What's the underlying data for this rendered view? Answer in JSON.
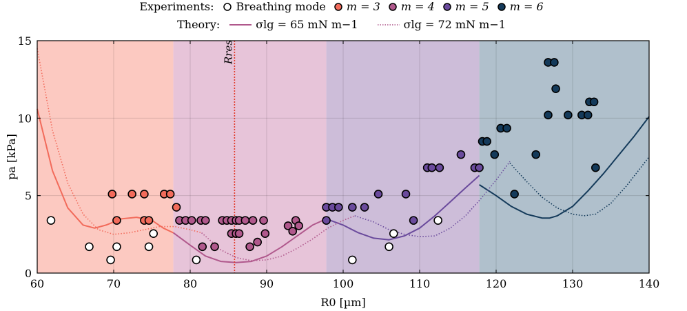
{
  "legend": {
    "experiments_label": "Experiments:",
    "theory_label": "Theory:",
    "experiments": [
      {
        "key": "breathing",
        "text": "Breathing mode",
        "color": "#ffffff"
      },
      {
        "key": "m3",
        "text": "m = 3",
        "color": "#f26b5b"
      },
      {
        "key": "m4",
        "text": "m = 4",
        "color": "#b0588c"
      },
      {
        "key": "m5",
        "text": "m = 5",
        "color": "#6a4a9c"
      },
      {
        "key": "m6",
        "text": "m = 6",
        "color": "#143a5a"
      }
    ],
    "theory": [
      {
        "key": "s65",
        "text": "σlg = 65 mN m−1",
        "style": "solid"
      },
      {
        "key": "s72",
        "text": "σlg = 72 mN m−1",
        "style": "dotted"
      }
    ]
  },
  "chart_data": {
    "type": "scatter",
    "xlabel": "R0 [µm]",
    "ylabel": "pa [kPa]",
    "xlim": [
      60,
      140
    ],
    "ylim": [
      0,
      15
    ],
    "xticks": [
      60,
      70,
      80,
      90,
      100,
      110,
      120,
      130,
      140
    ],
    "yticks": [
      0,
      5,
      10,
      15
    ],
    "grid": true,
    "annotation": {
      "text": "Rres",
      "x": 85.8
    },
    "regions": [
      {
        "mode": "m3",
        "x": [
          60,
          77.8
        ],
        "color": "#fcc9c1"
      },
      {
        "mode": "m4",
        "x": [
          77.8,
          97.8
        ],
        "color": "#e7c4d9"
      },
      {
        "mode": "m5",
        "x": [
          97.8,
          117.8
        ],
        "color": "#cdbdd9"
      },
      {
        "mode": "m6",
        "x": [
          117.8,
          140
        ],
        "color": "#b0c0cc"
      }
    ],
    "theory_solid": [
      {
        "mode": "m3",
        "color": "#f26b5b",
        "x": [
          60,
          62,
          64,
          66,
          67.5,
          69,
          71,
          73,
          75,
          76.5,
          77.8
        ],
        "y": [
          10.6,
          6.6,
          4.2,
          3.1,
          2.9,
          3.1,
          3.5,
          3.6,
          3.4,
          2.9,
          2.6
        ]
      },
      {
        "mode": "m4",
        "color": "#b0588c",
        "x": [
          77.8,
          80,
          82,
          84,
          86,
          88,
          90,
          92,
          94,
          96,
          97.8
        ],
        "y": [
          2.6,
          1.8,
          1.1,
          0.75,
          0.68,
          0.75,
          1.1,
          1.7,
          2.4,
          3.1,
          3.5
        ]
      },
      {
        "mode": "m5",
        "color": "#6a4a9c",
        "x": [
          97.8,
          100,
          102,
          104,
          106,
          108,
          110,
          112,
          114,
          116,
          117.8
        ],
        "y": [
          3.5,
          3.1,
          2.6,
          2.25,
          2.15,
          2.4,
          2.9,
          3.7,
          4.6,
          5.5,
          6.3
        ]
      },
      {
        "mode": "m6",
        "color": "#143a5a",
        "x": [
          117.8,
          120,
          122,
          124,
          126,
          127,
          128,
          130,
          132,
          134,
          136,
          138,
          140
        ],
        "y": [
          5.7,
          5.0,
          4.3,
          3.8,
          3.55,
          3.55,
          3.7,
          4.3,
          5.3,
          6.4,
          7.6,
          8.8,
          10.1
        ]
      }
    ],
    "theory_dotted": [
      {
        "mode": "m3",
        "color": "#f26b5b",
        "x": [
          60,
          62,
          64,
          66,
          68,
          70,
          72,
          74,
          76,
          78,
          80,
          81.5
        ],
        "y": [
          14.5,
          9.2,
          5.8,
          3.8,
          2.8,
          2.5,
          2.6,
          2.8,
          3.0,
          3.0,
          2.8,
          2.6
        ]
      },
      {
        "mode": "m4",
        "color": "#b0588c",
        "x": [
          81.5,
          84,
          86,
          88,
          90,
          92,
          94,
          96,
          98,
          100,
          101.5
        ],
        "y": [
          2.6,
          1.5,
          1.0,
          0.8,
          0.85,
          1.1,
          1.6,
          2.2,
          2.9,
          3.4,
          3.7
        ]
      },
      {
        "mode": "m5",
        "color": "#6a4a9c",
        "x": [
          101.5,
          104,
          106,
          108,
          110,
          112,
          114,
          116,
          118,
          120,
          121.8
        ],
        "y": [
          3.7,
          3.3,
          2.8,
          2.5,
          2.35,
          2.4,
          2.9,
          3.7,
          4.8,
          6.0,
          7.2
        ]
      },
      {
        "mode": "m6",
        "color": "#143a5a",
        "x": [
          121.8,
          124,
          126,
          128,
          130,
          131.5,
          133,
          135,
          137,
          140
        ],
        "y": [
          7.1,
          5.9,
          4.9,
          4.2,
          3.8,
          3.7,
          3.8,
          4.5,
          5.6,
          7.5
        ]
      }
    ],
    "series": [
      {
        "name": "Breathing mode",
        "color": "#ffffff",
        "x": [
          61.8,
          66.8,
          69.6,
          70.4,
          74.6,
          75.2,
          80.8,
          101.2,
          106.0,
          106.6,
          112.4
        ],
        "y": [
          3.4,
          1.7,
          0.85,
          1.7,
          1.7,
          2.55,
          0.85,
          0.85,
          1.7,
          2.55,
          3.4
        ]
      },
      {
        "name": "m = 3",
        "color": "#f26b5b",
        "x": [
          69.8,
          70.4,
          72.4,
          74.0,
          74.0,
          74.6,
          76.6,
          77.4,
          78.2
        ],
        "y": [
          5.1,
          3.4,
          5.1,
          5.1,
          3.4,
          3.4,
          5.1,
          5.1,
          4.25
        ]
      },
      {
        "name": "m = 4",
        "color": "#b0588c",
        "x": [
          78.6,
          79.4,
          80.2,
          81.4,
          81.6,
          82.0,
          83.2,
          84.2,
          84.8,
          85.4,
          85.4,
          86.0,
          86.0,
          86.4,
          86.4,
          87.2,
          87.8,
          88.2,
          88.8,
          89.6,
          89.8,
          92.8,
          93.4,
          93.8,
          94.2
        ],
        "y": [
          3.4,
          3.4,
          3.4,
          3.4,
          1.7,
          3.4,
          1.7,
          3.4,
          3.4,
          3.4,
          2.55,
          3.4,
          2.55,
          3.4,
          2.55,
          3.4,
          1.7,
          3.4,
          2.0,
          3.4,
          2.55,
          3.05,
          2.7,
          3.4,
          3.05
        ]
      },
      {
        "name": "m = 5",
        "color": "#6a4a9c",
        "x": [
          97.8,
          97.8,
          98.6,
          99.4,
          101.2,
          102.8,
          104.6,
          108.2,
          109.2,
          111.0,
          111.6,
          112.6,
          115.4,
          117.2,
          117.8
        ],
        "y": [
          4.25,
          3.4,
          4.25,
          4.25,
          4.25,
          4.25,
          5.1,
          5.1,
          3.4,
          6.8,
          6.8,
          6.8,
          7.65,
          6.8,
          6.8
        ]
      },
      {
        "name": "m = 6",
        "color": "#143a5a",
        "x": [
          118.2,
          118.8,
          119.8,
          120.6,
          121.4,
          122.4,
          125.2,
          126.8,
          126.8,
          127.6,
          127.8,
          129.4,
          131.2,
          132.0,
          132.2,
          132.8,
          133.0
        ],
        "y": [
          8.5,
          8.5,
          7.65,
          9.35,
          9.35,
          5.1,
          7.65,
          13.6,
          10.2,
          13.6,
          11.9,
          10.2,
          10.2,
          10.2,
          11.05,
          11.05,
          6.8
        ]
      }
    ]
  }
}
